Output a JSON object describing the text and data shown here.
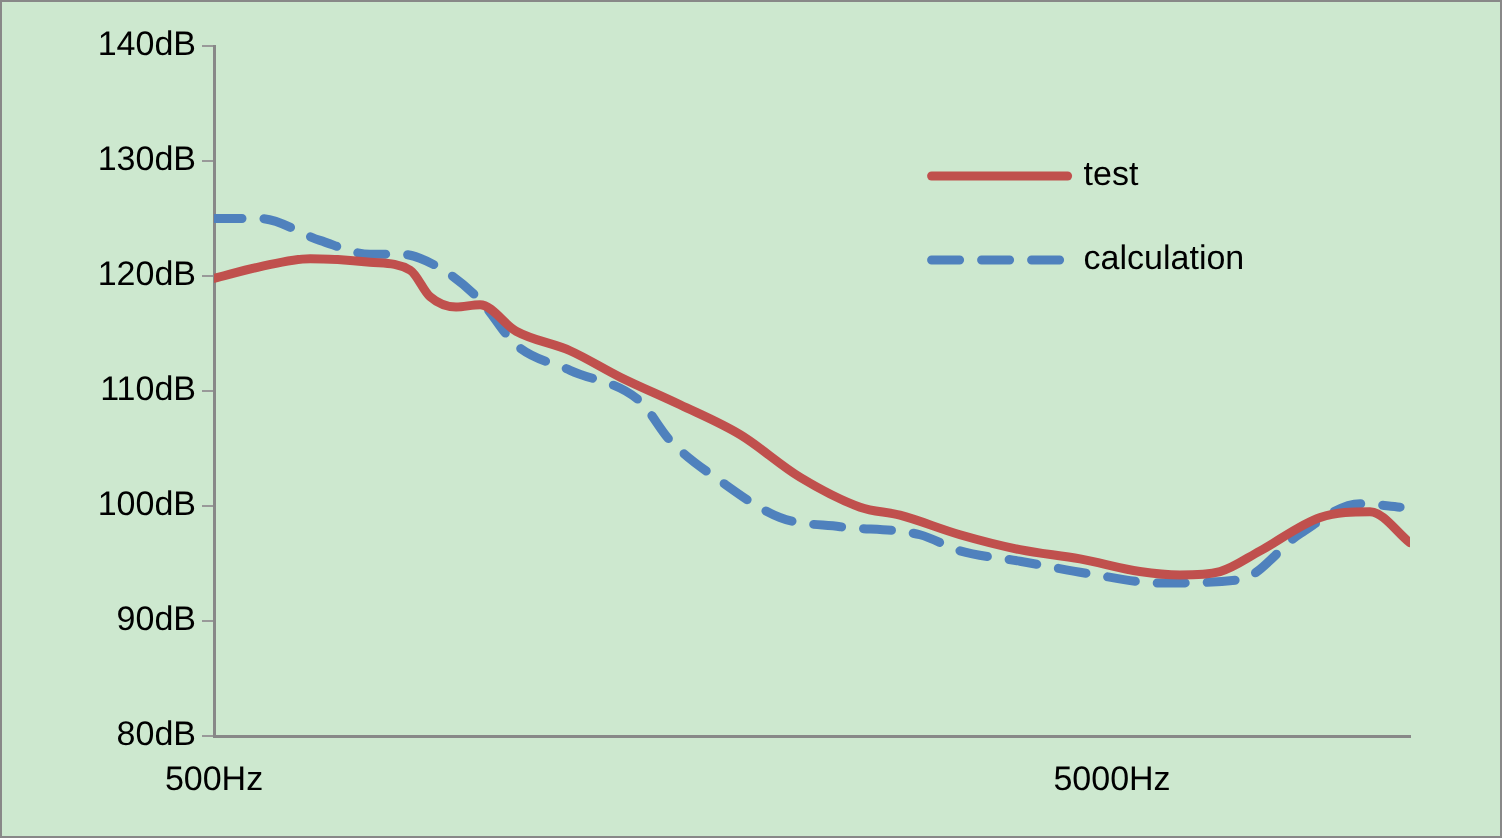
{
  "chart_data": {
    "type": "line",
    "log": "x",
    "xlim": [
      500,
      10735
    ],
    "xticks": [
      {
        "value": 500,
        "label": "500Hz"
      },
      {
        "value": 5000,
        "label": "5000Hz"
      }
    ],
    "ylim": [
      80,
      140
    ],
    "yticks": [
      {
        "value": 80,
        "label": "80dB"
      },
      {
        "value": 90,
        "label": "90dB"
      },
      {
        "value": 100,
        "label": "100dB"
      },
      {
        "value": 110,
        "label": "110dB"
      },
      {
        "value": 120,
        "label": "120dB"
      },
      {
        "value": 130,
        "label": "130dB"
      },
      {
        "value": 140,
        "label": "140dB"
      }
    ],
    "grid": false,
    "legend": "top right",
    "marker": "none",
    "series": [
      {
        "name": "test",
        "color": "#c0504d",
        "line_style": "solid",
        "x": [
          500,
          562,
          640,
          746,
          827,
          870,
          930,
          989,
          1085,
          1246,
          1417,
          1652,
          1927,
          2247,
          2621,
          2903,
          3386,
          3949,
          4606,
          5370,
          5952,
          6596,
          7310,
          8527,
          9688,
          10735
        ],
        "values": [
          119.8,
          120.8,
          121.5,
          121.2,
          120.5,
          118.2,
          117.3,
          117.5,
          115.2,
          113.5,
          111.2,
          108.8,
          106.2,
          102.5,
          99.9,
          99.2,
          97.5,
          96.2,
          95.4,
          94.3,
          94.0,
          94.3,
          96.1,
          99.0,
          99.5,
          96.8
        ]
      },
      {
        "name": "calculation",
        "color": "#4f81bd",
        "line_style": "dashed",
        "x": [
          500,
          562,
          656,
          746,
          806,
          892,
          989,
          1085,
          1246,
          1491,
          1610,
          1830,
          2134,
          2490,
          3056,
          3386,
          3949,
          4726,
          5654,
          6943,
          8099,
          9445,
          10466
        ],
        "values": [
          125.0,
          125.0,
          123.1,
          121.9,
          121.9,
          120.7,
          117.9,
          114.0,
          111.8,
          109.1,
          105.7,
          102.2,
          99.0,
          98.2,
          97.5,
          96.1,
          95.2,
          94.1,
          93.3,
          93.6,
          97.6,
          100.2,
          99.9
        ]
      }
    ]
  }
}
